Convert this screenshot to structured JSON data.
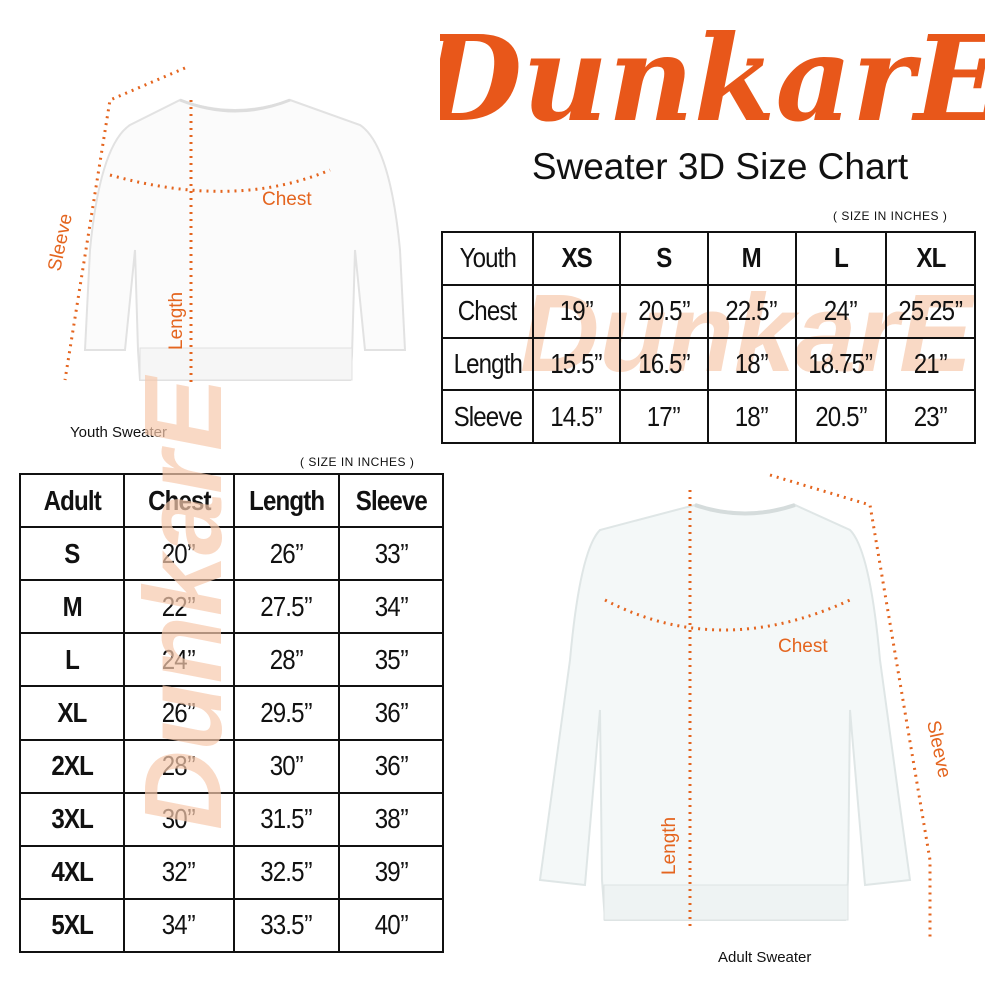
{
  "brand": {
    "logo_text": "DunkarE",
    "color": "#e8571a"
  },
  "title": "Sweater 3D Size Chart",
  "unit_note": "( SIZE IN INCHES )",
  "youth": {
    "caption": "Youth Sweater",
    "annotations": {
      "chest": "Chest",
      "length": "Length",
      "sleeve": "Sleeve"
    },
    "table": {
      "headers": [
        "Youth",
        "XS",
        "S",
        "M",
        "L",
        "XL"
      ],
      "rows": [
        [
          "Chest",
          "19’’",
          "20.5’’",
          "22.5’’",
          "24’’",
          "25.25’’"
        ],
        [
          "Length",
          "15.5’’",
          "16.5’’",
          "18’’",
          "18.75’’",
          "21’’"
        ],
        [
          "Sleeve",
          "14.5’’",
          "17’’",
          "18’’",
          "20.5’’",
          "23’’"
        ]
      ]
    }
  },
  "adult": {
    "caption": "Adult Sweater",
    "annotations": {
      "chest": "Chest",
      "length": "Length",
      "sleeve": "Sleeve"
    },
    "table": {
      "headers": [
        "Adult",
        "Chest",
        "Length",
        "Sleeve"
      ],
      "rows": [
        [
          "S",
          "20’’",
          "26’’",
          "33’’"
        ],
        [
          "M",
          "22’’",
          "27.5’’",
          "34’’"
        ],
        [
          "L",
          "24’’",
          "28’’",
          "35’’"
        ],
        [
          "XL",
          "26’’",
          "29.5’’",
          "36’’"
        ],
        [
          "2XL",
          "28’’",
          "30’’",
          "36’’"
        ],
        [
          "3XL",
          "30’’",
          "31.5’’",
          "38’’"
        ],
        [
          "4XL",
          "32’’",
          "32.5’’",
          "39’’"
        ],
        [
          "5XL",
          "34’’",
          "33.5’’",
          "40’’"
        ]
      ]
    }
  }
}
